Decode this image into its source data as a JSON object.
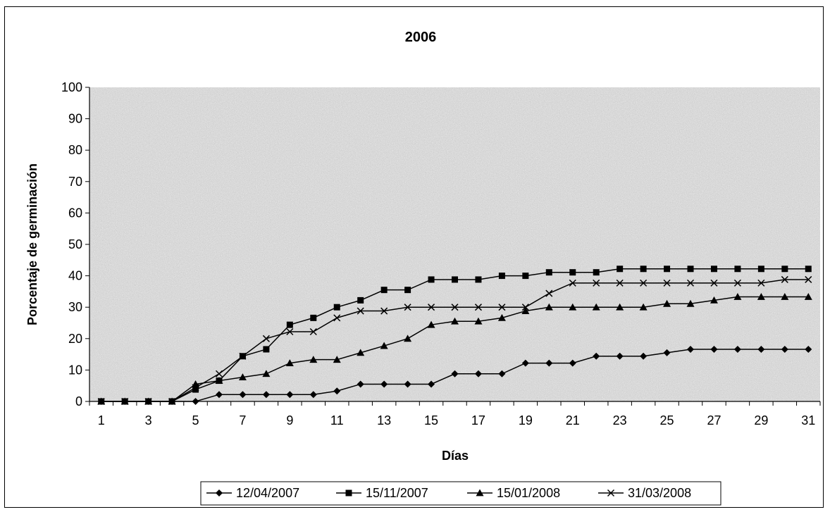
{
  "chart_data": {
    "type": "line",
    "title": "2006",
    "xlabel": "Días",
    "ylabel": "Porcentaje de germinación",
    "ylim": [
      0,
      100
    ],
    "yticks": [
      "0",
      "10",
      "20",
      "30",
      "40",
      "50",
      "60",
      "70",
      "80",
      "90",
      "100"
    ],
    "xticks": [
      "1",
      "3",
      "5",
      "7",
      "9",
      "11",
      "13",
      "15",
      "17",
      "19",
      "21",
      "23",
      "25",
      "27",
      "29",
      "31"
    ],
    "x": [
      1,
      2,
      3,
      4,
      5,
      6,
      7,
      8,
      9,
      10,
      11,
      12,
      13,
      14,
      15,
      16,
      17,
      18,
      19,
      20,
      21,
      22,
      23,
      24,
      25,
      26,
      27,
      28,
      29,
      30,
      31
    ],
    "grid": false,
    "legend_position": "bottom",
    "background": "gray granite texture",
    "series": [
      {
        "name": "12/04/2007",
        "marker": "diamond",
        "values": [
          0,
          0,
          0,
          0,
          0,
          2.2,
          2.2,
          2.2,
          2.2,
          2.2,
          3.3,
          5.5,
          5.5,
          5.5,
          5.5,
          8.8,
          8.8,
          8.8,
          12.2,
          12.2,
          12.2,
          14.4,
          14.4,
          14.4,
          15.5,
          16.6,
          16.6,
          16.6,
          16.6,
          16.6,
          16.6
        ]
      },
      {
        "name": "15/11/2007",
        "marker": "square",
        "values": [
          0,
          0,
          0,
          0,
          3.8,
          6.6,
          14.4,
          16.6,
          24.4,
          26.6,
          30,
          32.2,
          35.5,
          35.5,
          38.8,
          38.8,
          38.8,
          40,
          40,
          41.1,
          41.1,
          41.1,
          42.2,
          42.2,
          42.2,
          42.2,
          42.2,
          42.2,
          42.2,
          42.2,
          42.2
        ]
      },
      {
        "name": "15/01/2008",
        "marker": "triangle",
        "values": [
          0,
          0,
          0,
          0,
          5.5,
          6.6,
          7.7,
          8.8,
          12.2,
          13.3,
          13.3,
          15.5,
          17.7,
          20,
          24.4,
          25.5,
          25.5,
          26.6,
          28.8,
          30,
          30,
          30,
          30,
          30,
          31.1,
          31.1,
          32.2,
          33.3,
          33.3,
          33.3,
          33.3
        ]
      },
      {
        "name": "31/03/2008",
        "marker": "x",
        "values": [
          0,
          0,
          0,
          0,
          4.4,
          8.8,
          14.4,
          20,
          22.2,
          22.2,
          26.6,
          28.8,
          28.8,
          30,
          30,
          30,
          30,
          30,
          30,
          34.4,
          37.7,
          37.7,
          37.7,
          37.7,
          37.7,
          37.7,
          37.7,
          37.7,
          37.7,
          38.8,
          38.8
        ]
      }
    ]
  }
}
